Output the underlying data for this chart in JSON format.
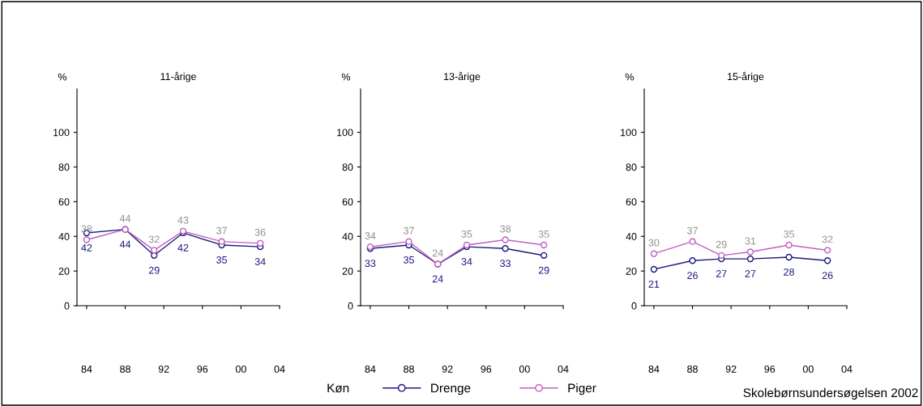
{
  "chart_data": [
    {
      "type": "line",
      "title": "11-årige",
      "ylabel": "%",
      "x": [
        1984,
        1988,
        1991,
        1994,
        1998,
        2002
      ],
      "xlim": [
        1983,
        2004
      ],
      "xticks": [
        {
          "value": 1984,
          "label": "84"
        },
        {
          "value": 1988,
          "label": "88"
        },
        {
          "value": 1992,
          "label": "92"
        },
        {
          "value": 1996,
          "label": "96"
        },
        {
          "value": 2000,
          "label": "00"
        },
        {
          "value": 2004,
          "label": "04"
        }
      ],
      "ylim": [
        0,
        125
      ],
      "yticks": [
        0,
        20,
        40,
        60,
        80,
        100
      ],
      "grid": false,
      "marker": "circle",
      "data_labels": true,
      "legend": "bottom",
      "legend_title": "Køn",
      "series": [
        {
          "name": "Drenge",
          "color": "#1a1a80",
          "values": [
            42,
            44,
            29,
            42,
            35,
            34
          ]
        },
        {
          "name": "Piger",
          "color": "#c060c0",
          "values": [
            38,
            44,
            32,
            43,
            37,
            36
          ]
        }
      ]
    },
    {
      "type": "line",
      "title": "13-årige",
      "ylabel": "%",
      "x": [
        1984,
        1988,
        1991,
        1994,
        1998,
        2002
      ],
      "xlim": [
        1983,
        2004
      ],
      "xticks": [
        {
          "value": 1984,
          "label": "84"
        },
        {
          "value": 1988,
          "label": "88"
        },
        {
          "value": 1992,
          "label": "92"
        },
        {
          "value": 1996,
          "label": "96"
        },
        {
          "value": 2000,
          "label": "00"
        },
        {
          "value": 2004,
          "label": "04"
        }
      ],
      "ylim": [
        0,
        125
      ],
      "yticks": [
        0,
        20,
        40,
        60,
        80,
        100
      ],
      "grid": false,
      "marker": "circle",
      "data_labels": true,
      "series": [
        {
          "color": "#1a1a80",
          "values": [
            33,
            35,
            24,
            34,
            33,
            29
          ]
        },
        {
          "color": "#c060c0",
          "values": [
            34,
            37,
            24,
            35,
            38,
            35
          ]
        }
      ]
    },
    {
      "type": "line",
      "title": "15-årige",
      "ylabel": "%",
      "x": [
        1984,
        1988,
        1991,
        1994,
        1998,
        2002
      ],
      "xlim": [
        1983,
        2004
      ],
      "xticks": [
        {
          "value": 1984,
          "label": "84"
        },
        {
          "value": 1988,
          "label": "88"
        },
        {
          "value": 1992,
          "label": "92"
        },
        {
          "value": 1996,
          "label": "96"
        },
        {
          "value": 2000,
          "label": "00"
        },
        {
          "value": 2004,
          "label": "04"
        }
      ],
      "ylim": [
        0,
        125
      ],
      "yticks": [
        0,
        20,
        40,
        60,
        80,
        100
      ],
      "grid": false,
      "marker": "circle",
      "data_labels": true,
      "annotations": [
        "Skolebørnsundersøgelsen 2002"
      ],
      "series": [
        {
          "color": "#1a1a80",
          "values": [
            21,
            26,
            27,
            27,
            28,
            26
          ]
        },
        {
          "color": "#c060c0",
          "values": [
            30,
            37,
            29,
            31,
            35,
            32
          ]
        }
      ]
    }
  ]
}
